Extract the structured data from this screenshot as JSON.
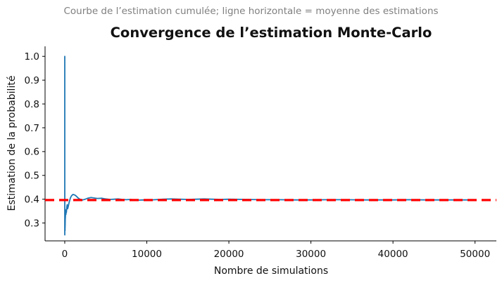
{
  "figure": {
    "subtitle": "Courbe de l’estimation cumulée; ligne horizontale = moyenne des estimations",
    "title": "Convergence de l’estimation Monte-Carlo"
  },
  "chart_data": {
    "type": "line",
    "title": "Convergence de l’estimation Monte-Carlo",
    "subtitle": "Courbe de l’estimation cumulée; ligne horizontale = moyenne des estimations",
    "xlabel": "Nombre de simulations",
    "ylabel": "Estimation de la probabilité",
    "xlim": [
      -2400,
      52600
    ],
    "ylim": [
      0.225,
      1.042
    ],
    "grid": false,
    "legend": "none",
    "xticks": {
      "values": [
        0,
        10000,
        20000,
        30000,
        40000,
        50000
      ],
      "labels": [
        "0",
        "10000",
        "20000",
        "30000",
        "40000",
        "50000"
      ]
    },
    "yticks": {
      "values": [
        0.3,
        0.4,
        0.5,
        0.6,
        0.7,
        0.8,
        0.9,
        1.0
      ],
      "labels": [
        "0.3",
        "0.4",
        "0.5",
        "0.6",
        "0.7",
        "0.8",
        "0.9",
        "1.0"
      ]
    },
    "colors": {
      "estimate_line": "#1f77b4",
      "mean_line": "#ff0000",
      "subtitle_text": "#7f7f7f",
      "title_text": "#111111"
    },
    "series": [
      {
        "name": "estimation cumulée",
        "kind": "line",
        "color": "#1f77b4",
        "line_width": 1.8,
        "points": [
          [
            1,
            1.0
          ],
          [
            2,
            0.5
          ],
          [
            3,
            0.333
          ],
          [
            4,
            0.25
          ],
          [
            6,
            0.333
          ],
          [
            9,
            0.278
          ],
          [
            14,
            0.357
          ],
          [
            20,
            0.3
          ],
          [
            30,
            0.267
          ],
          [
            45,
            0.289
          ],
          [
            60,
            0.317
          ],
          [
            80,
            0.325
          ],
          [
            110,
            0.355
          ],
          [
            140,
            0.336
          ],
          [
            170,
            0.347
          ],
          [
            200,
            0.345
          ],
          [
            250,
            0.368
          ],
          [
            300,
            0.377
          ],
          [
            350,
            0.36
          ],
          [
            420,
            0.369
          ],
          [
            500,
            0.382
          ],
          [
            600,
            0.395
          ],
          [
            700,
            0.406
          ],
          [
            800,
            0.413
          ],
          [
            900,
            0.417
          ],
          [
            1000,
            0.42
          ],
          [
            1100,
            0.419
          ],
          [
            1200,
            0.418
          ],
          [
            1400,
            0.413
          ],
          [
            1600,
            0.406
          ],
          [
            1800,
            0.401
          ],
          [
            2000,
            0.398
          ],
          [
            2200,
            0.397
          ],
          [
            2500,
            0.4
          ],
          [
            2800,
            0.404
          ],
          [
            3200,
            0.407
          ],
          [
            3600,
            0.405
          ],
          [
            4000,
            0.403
          ],
          [
            4500,
            0.404
          ],
          [
            5000,
            0.401
          ],
          [
            5500,
            0.399
          ],
          [
            6000,
            0.4
          ],
          [
            6500,
            0.401
          ],
          [
            7000,
            0.399
          ],
          [
            7500,
            0.398
          ],
          [
            8000,
            0.399
          ],
          [
            8500,
            0.397
          ],
          [
            9000,
            0.396
          ],
          [
            9500,
            0.397
          ],
          [
            10000,
            0.396
          ],
          [
            11000,
            0.398
          ],
          [
            12000,
            0.4
          ],
          [
            13000,
            0.401
          ],
          [
            14000,
            0.4
          ],
          [
            15000,
            0.399
          ],
          [
            16000,
            0.4
          ],
          [
            17000,
            0.401
          ],
          [
            18000,
            0.4
          ],
          [
            19000,
            0.399
          ],
          [
            20000,
            0.4
          ],
          [
            22000,
            0.399
          ],
          [
            24000,
            0.398
          ],
          [
            26000,
            0.398
          ],
          [
            28000,
            0.397
          ],
          [
            30000,
            0.397
          ],
          [
            32000,
            0.398
          ],
          [
            34000,
            0.398
          ],
          [
            36000,
            0.397
          ],
          [
            38000,
            0.397
          ],
          [
            40000,
            0.397
          ],
          [
            42000,
            0.398
          ],
          [
            44000,
            0.397
          ],
          [
            46000,
            0.397
          ],
          [
            48000,
            0.397
          ],
          [
            50000,
            0.397
          ]
        ]
      },
      {
        "name": "moyenne des estimations",
        "kind": "hline",
        "color": "#ff0000",
        "line_width": 3.2,
        "dash": [
          13,
          7
        ],
        "y": 0.3965
      }
    ]
  }
}
